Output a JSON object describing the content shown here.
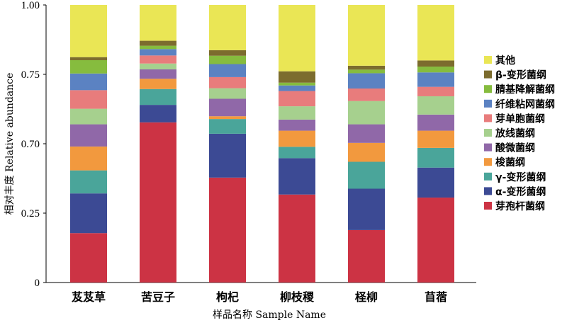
{
  "chart_data": {
    "type": "bar",
    "stacked": true,
    "xlabel": "样品名称  Sample Name",
    "ylabel": "相对丰度  Relative abundance",
    "ylim": [
      0,
      1
    ],
    "yticks": [
      "0",
      "0.25",
      "0.70",
      "0.75",
      "1.00"
    ],
    "legend_position": "right",
    "categories": [
      "芨芨草",
      "苦豆子",
      "枸杞",
      "柳枝稷",
      "柽柳",
      "苜蓿"
    ],
    "series": [
      {
        "name": "芽孢杆菌纲",
        "color": "#cc3344",
        "values": [
          0.178,
          0.577,
          0.378,
          0.317,
          0.189,
          0.306
        ]
      },
      {
        "name": "α-变形菌纲",
        "color": "#3c4a94",
        "values": [
          0.143,
          0.063,
          0.158,
          0.131,
          0.149,
          0.108
        ]
      },
      {
        "name": "γ-变形菌纲",
        "color": "#4aa59a",
        "values": [
          0.083,
          0.057,
          0.053,
          0.041,
          0.097,
          0.071
        ]
      },
      {
        "name": "梭菌纲",
        "color": "#f2993e",
        "values": [
          0.086,
          0.037,
          0.01,
          0.058,
          0.068,
          0.062
        ]
      },
      {
        "name": "酸微菌纲",
        "color": "#9068a8",
        "values": [
          0.08,
          0.034,
          0.063,
          0.04,
          0.067,
          0.058
        ]
      },
      {
        "name": "放线菌纲",
        "color": "#a6d08e",
        "values": [
          0.056,
          0.021,
          0.038,
          0.048,
          0.084,
          0.066
        ]
      },
      {
        "name": "芽单胞菌纲",
        "color": "#e87c7c",
        "values": [
          0.067,
          0.029,
          0.04,
          0.055,
          0.045,
          0.034
        ]
      },
      {
        "name": "纤维粘网菌纲",
        "color": "#5b82c2",
        "values": [
          0.06,
          0.023,
          0.047,
          0.02,
          0.055,
          0.052
        ]
      },
      {
        "name": "腈基降解菌纲",
        "color": "#86bc3e",
        "values": [
          0.048,
          0.012,
          0.03,
          0.01,
          0.013,
          0.021
        ]
      },
      {
        "name": "β-变形菌纲",
        "color": "#7c6c2e",
        "values": [
          0.011,
          0.018,
          0.02,
          0.041,
          0.014,
          0.022
        ]
      },
      {
        "name": "其他",
        "color": "#eae655",
        "values": [
          0.188,
          0.129,
          0.163,
          0.239,
          0.219,
          0.2
        ]
      }
    ]
  }
}
